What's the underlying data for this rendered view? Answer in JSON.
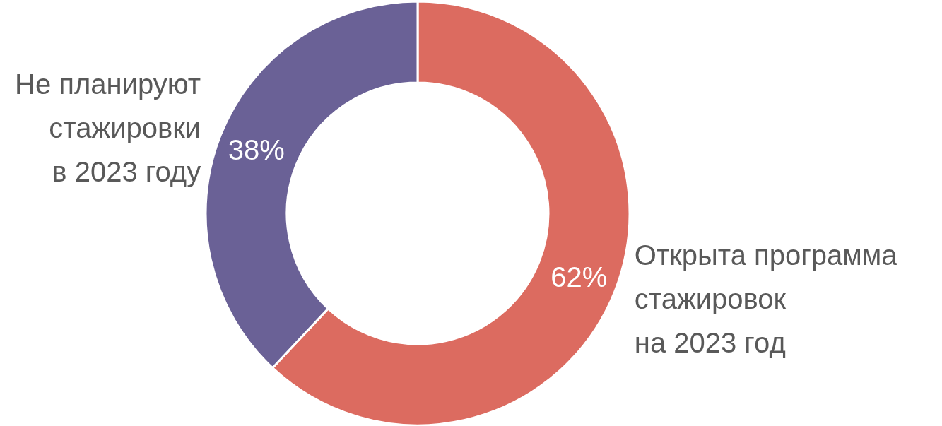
{
  "chart_data": {
    "type": "donut",
    "categories": [
      "Открыта программа\nстажировок\nна 2023 год",
      "Не планируют\nстажировки\nв 2023 году"
    ],
    "values": [
      62,
      38
    ],
    "colors": [
      "#dc6b60",
      "#6a6196"
    ],
    "value_labels": [
      "62%",
      "38%"
    ],
    "legend": false
  }
}
